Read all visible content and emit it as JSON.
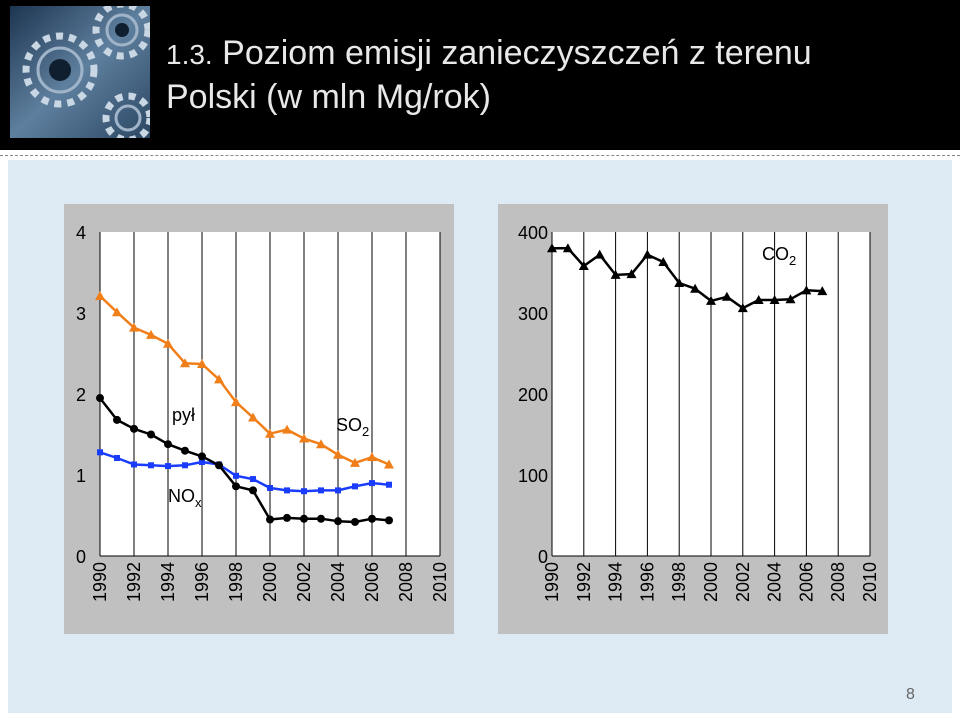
{
  "slide": {
    "title_num": "1.3.",
    "title_line1": "Poziom emisji zanieczyszczeń z terenu",
    "title_line2": "Polski (w mln Mg/rok)",
    "page_number": "8"
  },
  "colors": {
    "orange": "#f07f1a",
    "blue": "#1a3cff",
    "black": "#000000"
  },
  "chart_data": [
    {
      "type": "line",
      "title": "",
      "xlabel": "",
      "ylabel": "",
      "xlim": [
        1990,
        2010
      ],
      "ylim": [
        0,
        4
      ],
      "yticks": [
        0,
        1,
        2,
        3,
        4
      ],
      "xticks": [
        1990,
        1992,
        1994,
        1996,
        1998,
        2000,
        2002,
        2004,
        2006,
        2008,
        2010
      ],
      "annotations": [
        {
          "text": "pył"
        },
        {
          "text": "SO",
          "sub": "2"
        },
        {
          "text": "NO",
          "sub": "x"
        }
      ],
      "series": [
        {
          "name": "SO2",
          "color": "#f07f1a",
          "marker": "triangle",
          "x": [
            1990,
            1991,
            1992,
            1993,
            1994,
            1995,
            1996,
            1997,
            1998,
            1999,
            2000,
            2001,
            2002,
            2003,
            2004,
            2005,
            2006,
            2007
          ],
          "values": [
            3.21,
            3.01,
            2.82,
            2.73,
            2.62,
            2.38,
            2.37,
            2.18,
            1.9,
            1.71,
            1.51,
            1.56,
            1.45,
            1.38,
            1.25,
            1.15,
            1.22,
            1.13
          ]
        },
        {
          "name": "NOx",
          "color": "#1a3cff",
          "marker": "square",
          "x": [
            1990,
            1991,
            1992,
            1993,
            1994,
            1995,
            1996,
            1997,
            1998,
            1999,
            2000,
            2001,
            2002,
            2003,
            2004,
            2005,
            2006,
            2007
          ],
          "values": [
            1.28,
            1.21,
            1.13,
            1.12,
            1.11,
            1.12,
            1.16,
            1.13,
            0.99,
            0.95,
            0.84,
            0.81,
            0.8,
            0.81,
            0.81,
            0.86,
            0.9,
            0.88
          ]
        },
        {
          "name": "pył",
          "color": "#000000",
          "marker": "circle",
          "x": [
            1990,
            1991,
            1992,
            1993,
            1994,
            1995,
            1996,
            1997,
            1998,
            1999,
            2000,
            2001,
            2002,
            2003,
            2004,
            2005,
            2006,
            2007
          ],
          "values": [
            1.95,
            1.68,
            1.57,
            1.5,
            1.38,
            1.3,
            1.23,
            1.12,
            0.86,
            0.81,
            0.45,
            0.47,
            0.46,
            0.46,
            0.43,
            0.42,
            0.46,
            0.44
          ]
        }
      ]
    },
    {
      "type": "line",
      "title": "",
      "xlabel": "",
      "ylabel": "",
      "xlim": [
        1990,
        2010
      ],
      "ylim": [
        0,
        400
      ],
      "yticks": [
        0,
        100,
        200,
        300,
        400
      ],
      "xticks": [
        1990,
        1992,
        1994,
        1996,
        1998,
        2000,
        2002,
        2004,
        2006,
        2008,
        2010
      ],
      "annotations": [
        {
          "text": "CO",
          "sub": "2"
        }
      ],
      "series": [
        {
          "name": "CO2",
          "color": "#000000",
          "marker": "triangle",
          "x": [
            1990,
            1991,
            1992,
            1993,
            1994,
            1995,
            1996,
            1997,
            1998,
            1999,
            2000,
            2001,
            2002,
            2003,
            2004,
            2005,
            2006,
            2007
          ],
          "values": [
            380,
            380,
            358,
            372,
            347,
            348,
            372,
            363,
            337,
            330,
            315,
            320,
            306,
            316,
            316,
            317,
            328,
            327
          ]
        }
      ]
    }
  ]
}
